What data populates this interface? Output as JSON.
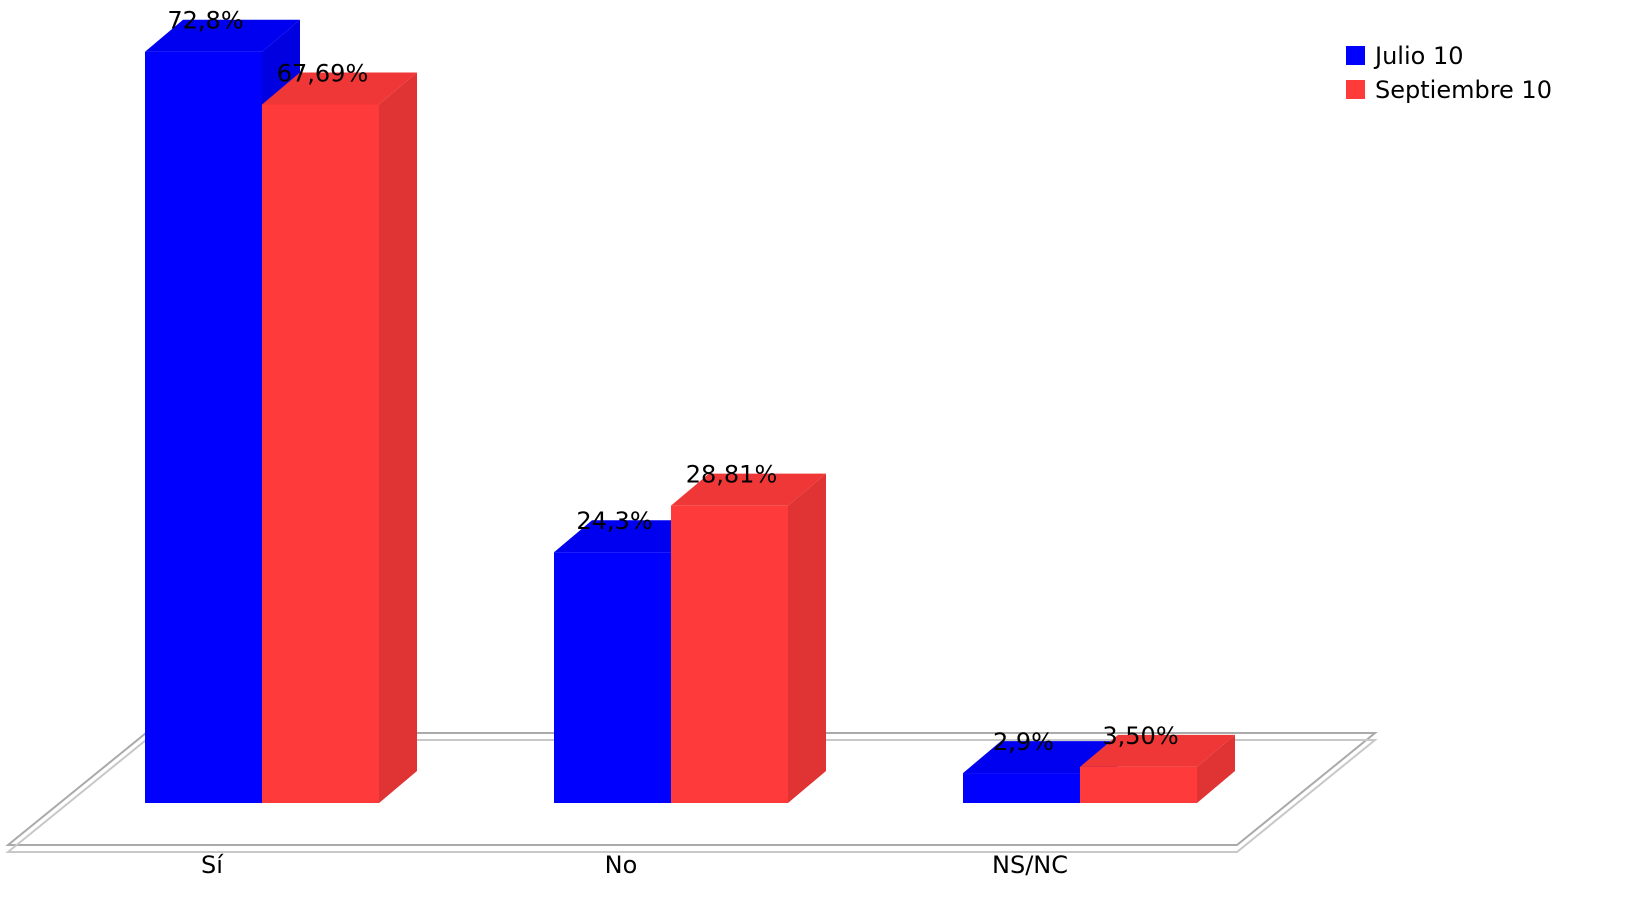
{
  "chart_data": {
    "type": "bar",
    "three_d": true,
    "categories": [
      "Sí",
      "No",
      "NS/NC"
    ],
    "series": [
      {
        "name": "Julio 10",
        "color": "#0000ff",
        "values": [
          72.8,
          24.3,
          2.9
        ],
        "value_labels": [
          "72,8%",
          "24,3%",
          "2,9%"
        ]
      },
      {
        "name": "Septiembre 10",
        "color": "#ff3a3a",
        "values": [
          67.69,
          28.81,
          3.5
        ],
        "value_labels": [
          "67,69%",
          "28,81%",
          "3,50%"
        ]
      }
    ],
    "legend": "top-right"
  }
}
